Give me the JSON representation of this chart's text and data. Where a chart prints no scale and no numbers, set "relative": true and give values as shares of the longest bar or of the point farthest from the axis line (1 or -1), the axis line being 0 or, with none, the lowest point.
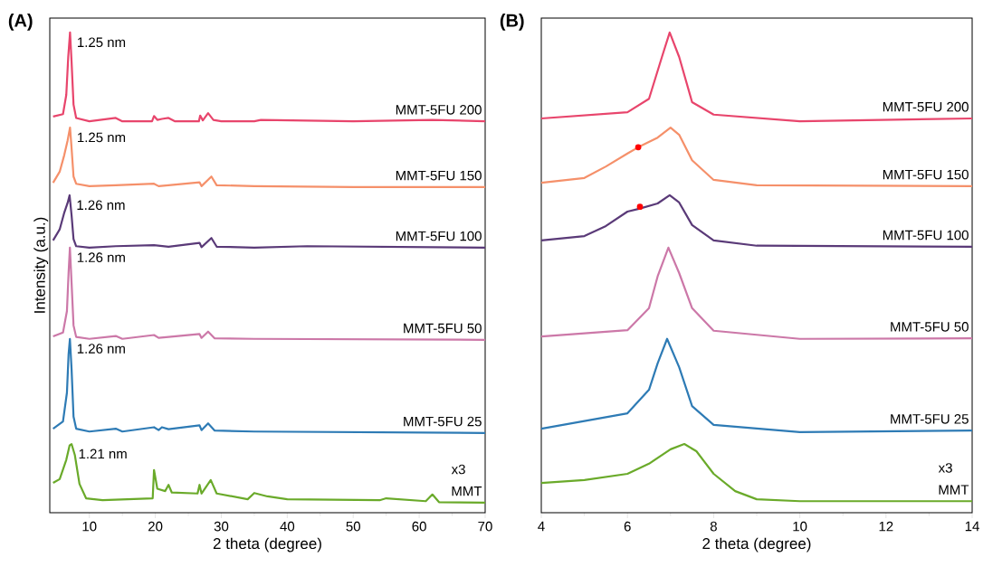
{
  "chart_data": [
    {
      "type": "line",
      "title": "(A)",
      "xlabel": "2 theta (degree)",
      "ylabel": "Intensity (a.u.)",
      "relative": true,
      "xlim": [
        4,
        70
      ],
      "xticks": [
        10,
        20,
        30,
        40,
        50,
        60,
        70
      ],
      "series": [
        {
          "name": "MMT",
          "color": "#6aaa2a",
          "x": [
            4.5,
            5.5,
            6.5,
            7.0,
            7.3,
            7.8,
            8.5,
            9.5,
            12,
            19.6,
            19.8,
            20.3,
            21.5,
            22,
            22.5,
            26.4,
            26.7,
            27,
            28.4,
            29.3,
            34,
            35,
            37,
            40,
            54,
            55,
            61,
            62,
            63,
            70
          ],
          "values": [
            0.062,
            0.07,
            0.11,
            0.14,
            0.143,
            0.12,
            0.06,
            0.03,
            0.026,
            0.03,
            0.089,
            0.05,
            0.045,
            0.058,
            0.042,
            0.04,
            0.058,
            0.04,
            0.068,
            0.04,
            0.028,
            0.041,
            0.034,
            0.028,
            0.026,
            0.03,
            0.024,
            0.038,
            0.022,
            0.021
          ]
        },
        {
          "name": "MMT-5FU 25",
          "color": "#2e7bb5",
          "x": [
            4.5,
            6.0,
            6.6,
            6.85,
            7.05,
            7.3,
            7.6,
            8,
            10,
            14,
            15,
            19.8,
            20.5,
            21,
            22,
            26.7,
            27,
            28,
            29,
            35,
            70
          ],
          "values": [
            0.175,
            0.19,
            0.25,
            0.33,
            0.362,
            0.3,
            0.2,
            0.175,
            0.169,
            0.175,
            0.169,
            0.178,
            0.172,
            0.178,
            0.174,
            0.182,
            0.172,
            0.186,
            0.171,
            0.169,
            0.166
          ]
        },
        {
          "name": "MMT-5FU 50",
          "color": "#cc78a8",
          "x": [
            4.5,
            6.0,
            6.6,
            6.85,
            7.05,
            7.3,
            7.6,
            8,
            10,
            14,
            15,
            19.8,
            20.5,
            22,
            26.7,
            27,
            28,
            29,
            35,
            70
          ],
          "values": [
            0.367,
            0.375,
            0.42,
            0.5,
            0.552,
            0.48,
            0.39,
            0.366,
            0.362,
            0.368,
            0.362,
            0.37,
            0.364,
            0.366,
            0.372,
            0.364,
            0.377,
            0.363,
            0.362,
            0.36
          ]
        },
        {
          "name": "MMT-5FU 100",
          "color": "#5a3a78",
          "x": [
            4.5,
            5.5,
            6.2,
            6.7,
            7.0,
            7.3,
            7.6,
            8,
            10,
            14,
            19.8,
            22,
            26.7,
            27,
            28.5,
            29.3,
            35,
            43,
            70
          ],
          "values": [
            0.567,
            0.59,
            0.625,
            0.645,
            0.661,
            0.62,
            0.57,
            0.555,
            0.552,
            0.555,
            0.557,
            0.554,
            0.562,
            0.553,
            0.572,
            0.554,
            0.552,
            0.555,
            0.552
          ]
        },
        {
          "name": "MMT-5FU 150",
          "color": "#f5906a",
          "x": [
            4.5,
            5.5,
            6.2,
            6.7,
            7.07,
            7.3,
            7.6,
            8,
            10,
            14,
            19.8,
            20.5,
            22,
            26.7,
            27,
            28.5,
            29.3,
            35,
            50,
            70
          ],
          "values": [
            0.687,
            0.71,
            0.745,
            0.775,
            0.802,
            0.76,
            0.7,
            0.685,
            0.68,
            0.682,
            0.685,
            0.68,
            0.682,
            0.688,
            0.68,
            0.7,
            0.682,
            0.68,
            0.678,
            0.678
          ]
        },
        {
          "name": "MMT-5FU 200",
          "color": "#e8456c",
          "x": [
            4.5,
            6.0,
            6.5,
            6.8,
            7.07,
            7.3,
            7.6,
            8,
            10,
            14,
            15,
            19.5,
            19.8,
            20.3,
            21,
            22,
            23,
            26.6,
            26.8,
            27.2,
            28,
            28.8,
            30,
            35,
            36,
            50,
            62,
            70
          ],
          "values": [
            0.825,
            0.83,
            0.87,
            0.95,
            1.0,
            0.94,
            0.85,
            0.822,
            0.815,
            0.822,
            0.815,
            0.815,
            0.826,
            0.818,
            0.82,
            0.822,
            0.815,
            0.815,
            0.827,
            0.817,
            0.832,
            0.818,
            0.815,
            0.815,
            0.818,
            0.815,
            0.818,
            0.815
          ]
        }
      ],
      "annotations": [
        "x3",
        {
          "text": "1.21 nm",
          "x": 7.3,
          "y": 0.143
        },
        {
          "text": "1.26 nm",
          "x": 7.05,
          "y": 0.362
        },
        {
          "text": "1.26 nm",
          "x": 7.05,
          "y": 0.552
        },
        {
          "text": "1.26 nm",
          "x": 7.0,
          "y": 0.661
        },
        {
          "text": "1.25 nm",
          "x": 7.07,
          "y": 0.802
        },
        {
          "text": "1.25 nm",
          "x": 7.07,
          "y": 1.0
        }
      ]
    },
    {
      "type": "line",
      "title": "(B)",
      "xlabel": "2 theta (degree)",
      "relative": true,
      "xlim": [
        4,
        14
      ],
      "xticks": [
        4,
        6,
        8,
        10,
        12,
        14
      ],
      "series": [
        {
          "name": "MMT",
          "color": "#6aaa2a",
          "x": [
            4,
            5,
            6,
            6.5,
            7,
            7.32,
            7.6,
            8,
            8.5,
            9,
            10,
            14
          ],
          "values": [
            0.062,
            0.068,
            0.081,
            0.102,
            0.132,
            0.143,
            0.128,
            0.081,
            0.045,
            0.028,
            0.024,
            0.024
          ]
        },
        {
          "name": "MMT-5FU 25",
          "color": "#2e7bb5",
          "x": [
            4,
            6,
            6.5,
            6.7,
            6.92,
            7.2,
            7.5,
            8,
            10,
            14
          ],
          "values": [
            0.175,
            0.207,
            0.256,
            0.311,
            0.362,
            0.303,
            0.222,
            0.183,
            0.168,
            0.171
          ]
        },
        {
          "name": "MMT-5FU 50",
          "color": "#cc78a8",
          "x": [
            4,
            6,
            6.5,
            6.7,
            6.95,
            7.2,
            7.5,
            8,
            10,
            14
          ],
          "values": [
            0.367,
            0.38,
            0.426,
            0.492,
            0.552,
            0.499,
            0.426,
            0.379,
            0.362,
            0.363
          ]
        },
        {
          "name": "MMT-5FU 100",
          "color": "#5a3a78",
          "x": [
            4,
            5,
            5.5,
            6,
            6.27,
            6.7,
            6.98,
            7.2,
            7.5,
            8,
            9,
            14
          ],
          "values": [
            0.567,
            0.576,
            0.597,
            0.627,
            0.633,
            0.644,
            0.661,
            0.646,
            0.599,
            0.567,
            0.556,
            0.554
          ]
        },
        {
          "name": "MMT-5FU 150",
          "color": "#f5906a",
          "x": [
            4,
            5,
            5.5,
            6,
            6.25,
            6.7,
            7.0,
            7.2,
            7.5,
            8,
            9,
            14
          ],
          "values": [
            0.687,
            0.697,
            0.721,
            0.748,
            0.761,
            0.781,
            0.802,
            0.787,
            0.734,
            0.693,
            0.682,
            0.68
          ]
        },
        {
          "name": "MMT-5FU 200",
          "color": "#e8456c",
          "x": [
            4,
            6,
            6.5,
            6.7,
            6.8,
            6.98,
            7.2,
            7.5,
            8,
            10,
            14
          ],
          "values": [
            0.821,
            0.834,
            0.862,
            0.92,
            0.949,
            1.0,
            0.949,
            0.855,
            0.829,
            0.815,
            0.821
          ]
        },
        {
          "type": "scatter",
          "color": "#ff0000",
          "x": [
            6.25,
            6.29
          ],
          "values": [
            0.761,
            0.637
          ]
        }
      ],
      "annotations": [
        "x3"
      ]
    }
  ]
}
